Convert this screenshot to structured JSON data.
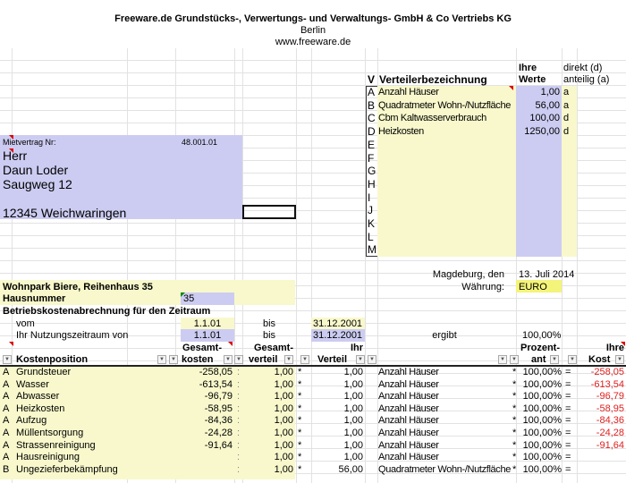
{
  "header": {
    "company": "Freeware.de Grundstücks-, Verwertungs- und Verwaltungs- GmbH & Co Vertriebs KG",
    "city": "Berlin",
    "website": "www.freeware.de"
  },
  "distributors": {
    "col_v": "V",
    "col_name": "Verteilerbezeichnung",
    "col_values_1": "Ihre",
    "col_values_2": "Werte",
    "col_type_1": "direkt (d)",
    "col_type_2": "anteilig (a)",
    "rows": [
      {
        "key": "A",
        "name": "Anzahl Häuser",
        "value": "1,00",
        "type": "a"
      },
      {
        "key": "B",
        "name": "Quadratmeter Wohn-/Nutzfläche",
        "value": "56,00",
        "type": "a"
      },
      {
        "key": "C",
        "name": "Cbm Kaltwasserverbrauch",
        "value": "100,00",
        "type": "d"
      },
      {
        "key": "D",
        "name": "Heizkosten",
        "value": "1250,00",
        "type": "d"
      },
      {
        "key": "E",
        "name": "",
        "value": "",
        "type": ""
      },
      {
        "key": "F",
        "name": "",
        "value": "",
        "type": ""
      },
      {
        "key": "G",
        "name": "",
        "value": "",
        "type": ""
      },
      {
        "key": "H",
        "name": "",
        "value": "",
        "type": ""
      },
      {
        "key": "I",
        "name": "",
        "value": "",
        "type": ""
      },
      {
        "key": "J",
        "name": "",
        "value": "",
        "type": ""
      },
      {
        "key": "K",
        "name": "",
        "value": "",
        "type": ""
      },
      {
        "key": "L",
        "name": "",
        "value": "",
        "type": ""
      },
      {
        "key": "M",
        "name": "",
        "value": "",
        "type": ""
      }
    ]
  },
  "address": {
    "contract_label": "Mietvertrag Nr:",
    "contract_no": "48.001.01",
    "salutation": "Herr",
    "name": "Daun Loder",
    "street": "Saugweg 12",
    "city": "12345 Weichwaringen"
  },
  "meta": {
    "place_label": "Magdeburg, den",
    "date": "13. Juli 2014",
    "currency_label": "Währung:",
    "currency": "EURO"
  },
  "property": {
    "name": "Wohnpark Biere, Reihenhaus 35",
    "house_label": "Hausnummer",
    "house_no": "35",
    "period_title": "Betriebskostenabrechnung für den Zeitraum",
    "from_label": "vom",
    "from": "1.1.01",
    "to_label": "bis",
    "to": "31.12.2001",
    "usage_label": "Ihr Nutzungszeitraum von",
    "usage_from": "1.1.01",
    "usage_to_label": "bis",
    "usage_to": "31.12.2001",
    "result_label": "ergibt",
    "result": "100,00%"
  },
  "table": {
    "headers": {
      "position": "Kostenposition",
      "total_1": "Gesamt-",
      "total_2": "kosten",
      "dist_1": "Gesamt-",
      "dist_2": "verteil",
      "own_1": "Ihr",
      "own_2": "Verteil",
      "pct_1": "Prozent-",
      "pct_2": "ant",
      "cost_1": "Ihre",
      "cost_2": "Kost"
    },
    "rows": [
      {
        "key": "A",
        "position": "Grundsteuer",
        "total": "-258,05",
        "sep": ":",
        "dist": "1,00",
        "mul": "*",
        "own": "1,00",
        "distributor": "Anzahl Häuser",
        "mul2": "*",
        "pct": "100,00%",
        "eq": "=",
        "cost": "-258,05"
      },
      {
        "key": "A",
        "position": "Wasser",
        "total": "-613,54",
        "sep": ":",
        "dist": "1,00",
        "mul": "*",
        "own": "1,00",
        "distributor": "Anzahl Häuser",
        "mul2": "*",
        "pct": "100,00%",
        "eq": "=",
        "cost": "-613,54"
      },
      {
        "key": "A",
        "position": "Abwasser",
        "total": "-96,79",
        "sep": ":",
        "dist": "1,00",
        "mul": "*",
        "own": "1,00",
        "distributor": "Anzahl Häuser",
        "mul2": "*",
        "pct": "100,00%",
        "eq": "=",
        "cost": "-96,79"
      },
      {
        "key": "A",
        "position": "Heizkosten",
        "total": "-58,95",
        "sep": ":",
        "dist": "1,00",
        "mul": "*",
        "own": "1,00",
        "distributor": "Anzahl Häuser",
        "mul2": "*",
        "pct": "100,00%",
        "eq": "=",
        "cost": "-58,95"
      },
      {
        "key": "A",
        "position": "Aufzug",
        "total": "-84,36",
        "sep": ":",
        "dist": "1,00",
        "mul": "*",
        "own": "1,00",
        "distributor": "Anzahl Häuser",
        "mul2": "*",
        "pct": "100,00%",
        "eq": "=",
        "cost": "-84,36"
      },
      {
        "key": "A",
        "position": "Müllentsorgung",
        "total": "-24,28",
        "sep": ":",
        "dist": "1,00",
        "mul": "*",
        "own": "1,00",
        "distributor": "Anzahl Häuser",
        "mul2": "*",
        "pct": "100,00%",
        "eq": "=",
        "cost": "-24,28"
      },
      {
        "key": "A",
        "position": "Strassenreinigung",
        "total": "-91,64",
        "sep": ":",
        "dist": "1,00",
        "mul": "*",
        "own": "1,00",
        "distributor": "Anzahl Häuser",
        "mul2": "*",
        "pct": "100,00%",
        "eq": "=",
        "cost": "-91,64"
      },
      {
        "key": "A",
        "position": "Hausreinigung",
        "total": "",
        "sep": ":",
        "dist": "1,00",
        "mul": "*",
        "own": "1,00",
        "distributor": "Anzahl Häuser",
        "mul2": "*",
        "pct": "100,00%",
        "eq": "=",
        "cost": ""
      },
      {
        "key": "B",
        "position": "Ungezieferbekämpfung",
        "total": "",
        "sep": ":",
        "dist": "1,00",
        "mul": "*",
        "own": "56,00",
        "distributor": "Quadratmeter Wohn-/Nutzfläche",
        "mul2": "*",
        "pct": "100,00%",
        "eq": "=",
        "cost": ""
      }
    ]
  },
  "colors": {
    "yellow": "#f8f8cc",
    "blue": "#ccccf2",
    "currency": "#f4f47a",
    "negative": "#e02020"
  }
}
